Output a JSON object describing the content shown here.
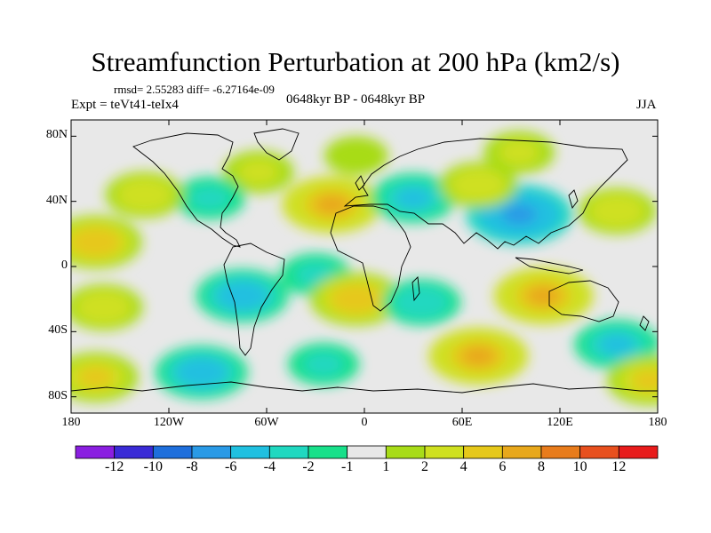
{
  "title": "Streamfunction Perturbation at 200 hPa (km2/s)",
  "stats": "rmsd= 2.55283 diff= -6.27164e-09",
  "experiment": "Expt = teVt41-teIx4",
  "period": "0648kyr BP - 0648kyr BP",
  "season": "JJA",
  "lat_labels": [
    "80N",
    "40N",
    "0",
    "40S",
    "80S"
  ],
  "lon_labels": [
    "180",
    "120W",
    "60W",
    "0",
    "60E",
    "120E",
    "180"
  ],
  "colorbar": {
    "colors": [
      "#8a1fe0",
      "#3a2bd6",
      "#1f6fdc",
      "#2a9ae6",
      "#20c0e0",
      "#20d8c0",
      "#18e08a",
      "#e8e8e8",
      "#a8dc18",
      "#cfe020",
      "#e6c81a",
      "#e8a81c",
      "#e87c1c",
      "#e8501e",
      "#e81c1c"
    ],
    "labels": [
      "-12",
      "-10",
      "-8",
      "-6",
      "-4",
      "-2",
      "-1",
      "1",
      "2",
      "4",
      "6",
      "8",
      "10",
      "12"
    ]
  },
  "map_data": {
    "projection": "cylindrical-equidistant",
    "lon_range": [
      -180,
      180
    ],
    "lat_range": [
      -90,
      90
    ],
    "anomalies": [
      {
        "lon": 95,
        "lat": 70,
        "level": 2
      },
      {
        "lon": -5,
        "lat": 68,
        "level": 1
      },
      {
        "lon": -65,
        "lat": 58,
        "level": 2
      },
      {
        "lon": -95,
        "lat": 42,
        "level": -2
      },
      {
        "lon": -135,
        "lat": 44,
        "level": 3
      },
      {
        "lon": -20,
        "lat": 38,
        "level": 6
      },
      {
        "lon": 30,
        "lat": 42,
        "level": -4
      },
      {
        "lon": 95,
        "lat": 32,
        "level": -7
      },
      {
        "lon": 70,
        "lat": 50,
        "level": 3
      },
      {
        "lon": 155,
        "lat": 34,
        "level": 3
      },
      {
        "lon": -165,
        "lat": 15,
        "level": 5
      },
      {
        "lon": -160,
        "lat": -25,
        "level": 3
      },
      {
        "lon": -75,
        "lat": -18,
        "level": -5
      },
      {
        "lon": -30,
        "lat": -5,
        "level": -2
      },
      {
        "lon": -5,
        "lat": -20,
        "level": 5
      },
      {
        "lon": 35,
        "lat": -22,
        "level": -3
      },
      {
        "lon": 110,
        "lat": -18,
        "level": 6
      },
      {
        "lon": 155,
        "lat": -48,
        "level": -4
      },
      {
        "lon": 70,
        "lat": -55,
        "level": 6
      },
      {
        "lon": -100,
        "lat": -65,
        "level": -5
      },
      {
        "lon": -25,
        "lat": -60,
        "level": -2
      },
      {
        "lon": 175,
        "lat": -70,
        "level": 4
      },
      {
        "lon": -165,
        "lat": -68,
        "level": 4
      }
    ]
  }
}
